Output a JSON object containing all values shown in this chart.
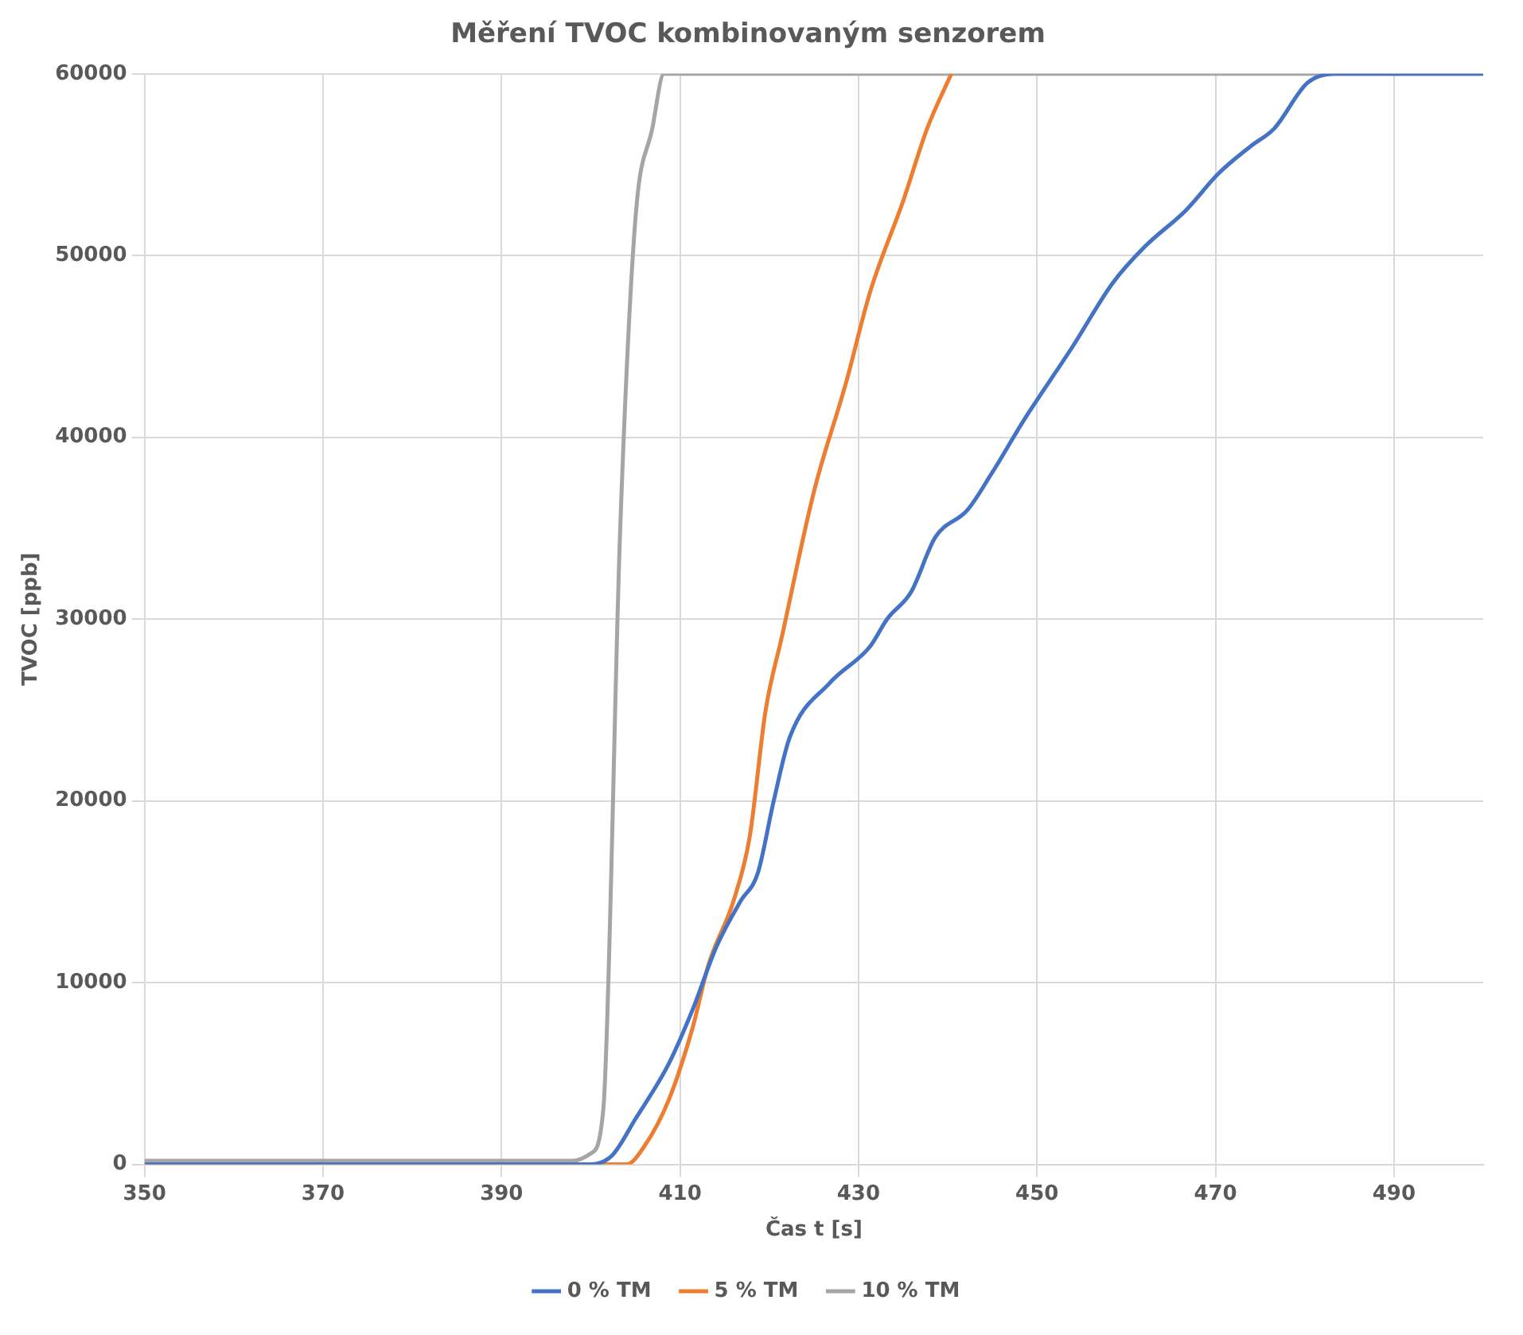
{
  "chart_data": {
    "type": "line",
    "title": "Měření TVOC kombinovaným senzorem",
    "xlabel": "Čas t [s]",
    "ylabel": "TVOC [ppb]",
    "xlim": [
      350,
      500
    ],
    "xticks": [
      350,
      370,
      390,
      410,
      430,
      450,
      470,
      490
    ],
    "ylim": [
      0,
      60000
    ],
    "yticks": [
      0,
      10000,
      20000,
      30000,
      40000,
      50000,
      60000
    ],
    "grid": true,
    "legend": "bottom",
    "marker": "none",
    "line_style": "solid",
    "series": [
      {
        "name": "0 % TM",
        "color": "#4472c4",
        "x": [
          350,
          400,
          402.4,
          405,
          408.7,
          411.4,
          414.1,
          416.8,
          418.7,
          420.5,
          422.3,
          426.8,
          431.3,
          433.2,
          435.9,
          438.6,
          442.2,
          444.9,
          448.6,
          454,
          458.5,
          462.1,
          466.7,
          470.3,
          473.9,
          476.6,
          480.3,
          483.3,
          500
        ],
        "values": [
          0,
          0,
          500,
          2500,
          5500,
          8500,
          12000,
          14500,
          16000,
          20000,
          23500,
          26500,
          28500,
          30000,
          31500,
          34500,
          36000,
          38000,
          41000,
          45000,
          48500,
          50500,
          52500,
          54500,
          56000,
          57000,
          59500,
          60000,
          60000
        ]
      },
      {
        "name": "5 % TM",
        "color": "#ed7d31",
        "x": [
          350,
          404,
          406,
          408.7,
          411.4,
          413.2,
          416,
          417.8,
          419.6,
          421.4,
          425,
          428.6,
          431.3,
          435,
          437.7,
          440.4
        ],
        "values": [
          0,
          0,
          1000,
          3500,
          7500,
          11000,
          14500,
          18000,
          25000,
          29000,
          37000,
          43000,
          48000,
          53000,
          57000,
          60000
        ]
      },
      {
        "name": "10 % TM",
        "color": "#a5a5a5",
        "x": [
          350,
          398,
          400,
          401.4,
          403.3,
          405,
          406.9,
          408.2,
          500
        ],
        "values": [
          200,
          200,
          600,
          3000,
          35000,
          52000,
          57000,
          60000,
          60000
        ]
      }
    ]
  }
}
